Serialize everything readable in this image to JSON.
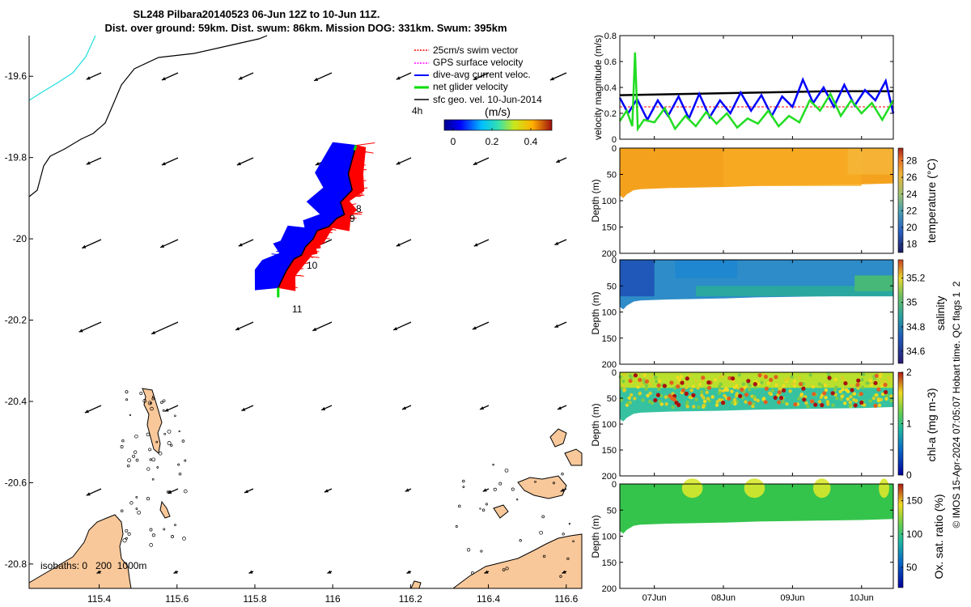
{
  "header": {
    "title_line1": "SL248 Pilbara20140523 06-Jun 12Z to 10-Jun 11Z.",
    "title_line2": "Dist. over ground: 59km. Dist. swum: 86km. Mission DOG: 331km. Swum: 395km"
  },
  "map": {
    "legend": [
      {
        "label": "25cm/s swim vector",
        "color": "#ff0000"
      },
      {
        "label": "GPS surface velocity",
        "color": "#ff00ff"
      },
      {
        "label": "dive-avg current veloc.",
        "color": "#0000ff"
      },
      {
        "label": "net glider velocity",
        "color": "#00dd00"
      },
      {
        "label": "sfc geo. vel. 10-Jun-2014",
        "color": "#000000"
      }
    ],
    "interval_label": "4h",
    "speed_colorbar": {
      "title": "(m/s)",
      "ticks": [
        "0",
        "0.2",
        "0.4"
      ]
    },
    "isobaths_label": "isobaths: 0   200  1000m",
    "track_labels": [
      "8",
      "9",
      "10",
      "11"
    ],
    "land_color": "#f8c89a",
    "glider_colors": {
      "blue": "#0000ff",
      "red": "#ff0000"
    }
  },
  "chart_data": [
    {
      "type": "line",
      "panel": "map",
      "xlim": [
        115.22,
        116.64
      ],
      "ylim": [
        -20.86,
        -19.5
      ],
      "x_ticks": [
        "115.4",
        "115.6",
        "115.8",
        "116",
        "116.2",
        "116.4",
        "116.6"
      ],
      "y_ticks": [
        "-19.6",
        "-19.8",
        "-20",
        "-20.2",
        "-20.4",
        "-20.6",
        "-20.8"
      ],
      "series": [
        {
          "x": [
            116.06,
            116.04,
            116.05,
            116.02,
            116.03,
            116.01,
            115.99,
            115.96,
            115.95,
            115.93,
            115.92,
            115.9,
            115.88,
            115.86
          ],
          "y": [
            -19.77,
            -19.84,
            -19.88,
            -19.91,
            -19.94,
            -19.95,
            -19.97,
            -19.98,
            -20.0,
            -20.02,
            -20.04,
            -20.05,
            -20.08,
            -20.12
          ]
        }
      ]
    },
    {
      "type": "line",
      "panel": "velocity",
      "ylabel": "velocity magnitude (m/s)",
      "ylim": [
        0,
        0.8
      ],
      "y_ticks": [
        "0",
        "0.2",
        "0.4",
        "0.6",
        "0.8"
      ],
      "series": [
        {
          "name": "sfc geo. vel.",
          "color": "#000000",
          "x": [
            6.5,
            7.5,
            8.5,
            9.5,
            10.46
          ],
          "y": [
            0.34,
            0.35,
            0.36,
            0.37,
            0.37
          ]
        },
        {
          "name": "25cm/s swim vector",
          "color": "#ff0000",
          "x": [
            6.5,
            10.46
          ],
          "y": [
            0.25,
            0.25
          ]
        },
        {
          "name": "dive-avg current veloc.",
          "color": "#0000ff",
          "x": [
            6.5,
            6.62,
            6.75,
            6.9,
            7.05,
            7.2,
            7.35,
            7.5,
            7.65,
            7.8,
            7.95,
            8.1,
            8.25,
            8.4,
            8.55,
            8.7,
            8.85,
            9.0,
            9.15,
            9.3,
            9.45,
            9.6,
            9.75,
            9.9,
            10.05,
            10.2,
            10.35,
            10.46
          ],
          "y": [
            0.32,
            0.2,
            0.31,
            0.15,
            0.3,
            0.18,
            0.33,
            0.16,
            0.35,
            0.17,
            0.3,
            0.2,
            0.36,
            0.22,
            0.34,
            0.18,
            0.33,
            0.25,
            0.46,
            0.28,
            0.4,
            0.25,
            0.42,
            0.26,
            0.38,
            0.3,
            0.45,
            0.2
          ]
        },
        {
          "name": "net glider velocity",
          "color": "#22dd22",
          "x": [
            6.5,
            6.6,
            6.68,
            6.72,
            6.76,
            6.85,
            7.0,
            7.15,
            7.3,
            7.45,
            7.6,
            7.75,
            7.9,
            8.05,
            8.2,
            8.35,
            8.5,
            8.65,
            8.8,
            8.95,
            9.1,
            9.25,
            9.4,
            9.55,
            9.7,
            9.85,
            10.0,
            10.15,
            10.3,
            10.46
          ],
          "y": [
            0.14,
            0.22,
            0.1,
            0.67,
            0.08,
            0.15,
            0.13,
            0.24,
            0.08,
            0.18,
            0.1,
            0.21,
            0.12,
            0.2,
            0.09,
            0.16,
            0.12,
            0.22,
            0.1,
            0.18,
            0.13,
            0.3,
            0.22,
            0.35,
            0.18,
            0.3,
            0.2,
            0.28,
            0.15,
            0.3
          ]
        }
      ]
    },
    {
      "type": "heatmap",
      "panel": "temperature",
      "ylabel": "Depth (m)",
      "colorbar_label": "temperature (°C)",
      "ylim": [
        200,
        0
      ],
      "y_ticks": [
        "0",
        "50",
        "100",
        "150",
        "200"
      ],
      "colorbar_ticks": [
        "18",
        "20",
        "22",
        "24",
        "26",
        "28"
      ]
    },
    {
      "type": "heatmap",
      "panel": "salinity",
      "ylabel": "Depth (m)",
      "colorbar_label": "salinity",
      "ylim": [
        200,
        0
      ],
      "y_ticks": [
        "0",
        "50",
        "100",
        "150",
        "200"
      ],
      "colorbar_ticks": [
        "34.6",
        "34.8",
        "35",
        "35.2"
      ]
    },
    {
      "type": "heatmap",
      "panel": "chla",
      "ylabel": "Depth (m)",
      "colorbar_label": "chl-a (mg m-3)",
      "ylim": [
        200,
        0
      ],
      "y_ticks": [
        "0",
        "50",
        "100",
        "150",
        "200"
      ],
      "colorbar_ticks": [
        "0",
        "1",
        "2"
      ]
    },
    {
      "type": "heatmap",
      "panel": "oxygen",
      "ylabel": "Depth (m)",
      "colorbar_label": "Ox. sat. ratio (%)",
      "ylim": [
        200,
        0
      ],
      "y_ticks": [
        "0",
        "50",
        "100",
        "150",
        "200"
      ],
      "colorbar_ticks": [
        "50",
        "100",
        "150"
      ],
      "x_ticks": [
        "07Jun",
        "08Jun",
        "09Jun",
        "10Jun"
      ]
    }
  ],
  "credit": "© IMOS 15-Apr-2024 07:05:07 Hobart time. QC flags 1  2"
}
